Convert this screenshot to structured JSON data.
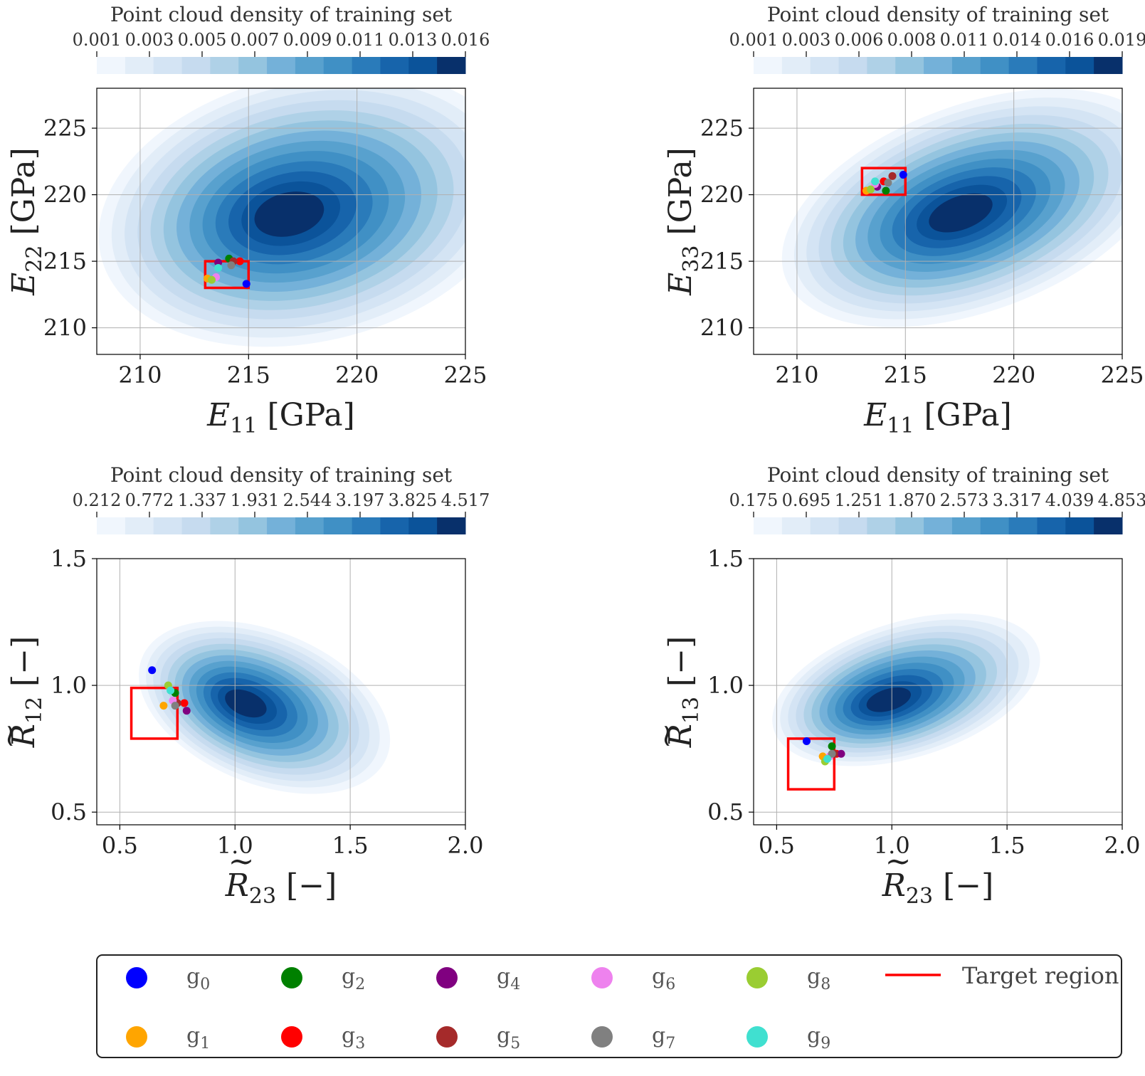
{
  "colors": {
    "blues": [
      "#f0f6fd",
      "#e2edf8",
      "#d4e4f4",
      "#c6dbef",
      "#afd1e7",
      "#94c4df",
      "#74b1d9",
      "#58a1ce",
      "#4090c5",
      "#2a7bba",
      "#1764ab",
      "#0b539a",
      "#08306b"
    ],
    "target": "#ff0000",
    "grid": "#b0b0b0"
  },
  "legend": {
    "items": [
      {
        "label": "g",
        "sub": "0",
        "color": "#0000ff"
      },
      {
        "label": "g",
        "sub": "1",
        "color": "#ffa500"
      },
      {
        "label": "g",
        "sub": "2",
        "color": "#008000"
      },
      {
        "label": "g",
        "sub": "3",
        "color": "#ff0000"
      },
      {
        "label": "g",
        "sub": "4",
        "color": "#800080"
      },
      {
        "label": "g",
        "sub": "5",
        "color": "#a52a2a"
      },
      {
        "label": "g",
        "sub": "6",
        "color": "#ee82ee"
      },
      {
        "label": "g",
        "sub": "7",
        "color": "#808080"
      },
      {
        "label": "g",
        "sub": "8",
        "color": "#9acd32"
      },
      {
        "label": "g",
        "sub": "9",
        "color": "#40e0d0"
      }
    ],
    "target_label": "Target region"
  },
  "chart_data": [
    {
      "type": "kde-contour-scatter",
      "colorbar_title": "Point cloud density of training set",
      "colorbar_ticks": [
        "0.001",
        "0.003",
        "0.005",
        "0.007",
        "0.009",
        "0.011",
        "0.013",
        "0.016"
      ],
      "xlabel": {
        "sym": "E",
        "sub": "11",
        "unit": " [GPa]",
        "tilde": false
      },
      "ylabel": {
        "sym": "E",
        "sub": "22",
        "unit": " [GPa]",
        "tilde": false
      },
      "xlim": [
        208,
        225
      ],
      "ylim": [
        208,
        228
      ],
      "xticks": [
        210,
        215,
        220,
        225
      ],
      "yticks": [
        210,
        215,
        220,
        225
      ],
      "tick_fmt": 0,
      "density": {
        "cx": 216.8,
        "cy": 218.5,
        "sx": 3.6,
        "sy": 3.8,
        "rho": 0.35,
        "skx": 0.8,
        "sky": 0.1
      },
      "target": {
        "x0": 213,
        "x1": 215,
        "y0": 213,
        "y1": 215
      },
      "points": [
        {
          "g": 0,
          "x": 214.9,
          "y": 213.3
        },
        {
          "g": 1,
          "x": 213.1,
          "y": 213.7
        },
        {
          "g": 2,
          "x": 214.1,
          "y": 215.2
        },
        {
          "g": 3,
          "x": 214.6,
          "y": 215.0
        },
        {
          "g": 4,
          "x": 213.6,
          "y": 214.9
        },
        {
          "g": 5,
          "x": 214.3,
          "y": 215.0
        },
        {
          "g": 6,
          "x": 213.5,
          "y": 213.8
        },
        {
          "g": 7,
          "x": 214.2,
          "y": 214.7
        },
        {
          "g": 8,
          "x": 213.3,
          "y": 213.6
        },
        {
          "g": 9,
          "x": 213.6,
          "y": 214.5
        }
      ]
    },
    {
      "type": "kde-contour-scatter",
      "colorbar_title": "Point cloud density of training set",
      "colorbar_ticks": [
        "0.001",
        "0.003",
        "0.006",
        "0.008",
        "0.011",
        "0.014",
        "0.016",
        "0.019"
      ],
      "xlabel": {
        "sym": "E",
        "sub": "11",
        "unit": " [GPa]",
        "tilde": false
      },
      "ylabel": {
        "sym": "E",
        "sub": "33",
        "unit": " [GPa]",
        "tilde": false
      },
      "xlim": [
        208,
        225
      ],
      "ylim": [
        208,
        228
      ],
      "xticks": [
        210,
        215,
        220,
        225
      ],
      "yticks": [
        210,
        215,
        220,
        225
      ],
      "tick_fmt": 0,
      "density": {
        "cx": 217.5,
        "cy": 218.6,
        "sx": 3.4,
        "sy": 3.4,
        "rho": 0.6,
        "skx": 0.6,
        "sky": 0.0
      },
      "target": {
        "x0": 213,
        "x1": 215,
        "y0": 220,
        "y1": 222
      },
      "points": [
        {
          "g": 0,
          "x": 214.9,
          "y": 221.5
        },
        {
          "g": 1,
          "x": 213.2,
          "y": 220.3
        },
        {
          "g": 2,
          "x": 214.1,
          "y": 220.3
        },
        {
          "g": 3,
          "x": 214.0,
          "y": 221.0
        },
        {
          "g": 4,
          "x": 213.7,
          "y": 220.6
        },
        {
          "g": 5,
          "x": 214.4,
          "y": 221.4
        },
        {
          "g": 6,
          "x": 213.6,
          "y": 220.8
        },
        {
          "g": 7,
          "x": 214.2,
          "y": 220.9
        },
        {
          "g": 8,
          "x": 213.4,
          "y": 220.4
        },
        {
          "g": 9,
          "x": 213.6,
          "y": 221.0
        }
      ]
    },
    {
      "type": "kde-contour-scatter",
      "colorbar_title": "Point cloud density of training set",
      "colorbar_ticks": [
        "0.212",
        "0.772",
        "1.337",
        "1.931",
        "2.544",
        "3.197",
        "3.825",
        "4.517"
      ],
      "xlabel": {
        "sym": "R",
        "sub": "23",
        "unit": " [−]",
        "tilde": true
      },
      "ylabel": {
        "sym": "R",
        "sub": "12",
        "unit": " [−]",
        "tilde": true
      },
      "xlim": [
        0.4,
        2.0
      ],
      "ylim": [
        0.45,
        1.5
      ],
      "xticks": [
        0.5,
        1.0,
        1.5,
        2.0
      ],
      "yticks": [
        0.5,
        1.0,
        1.5
      ],
      "tick_fmt": 1,
      "density": {
        "cx": 1.04,
        "cy": 0.93,
        "sx": 0.21,
        "sy": 0.13,
        "rho": -0.6,
        "skx": 1.2,
        "sky": 0.4
      },
      "target": {
        "x0": 0.55,
        "x1": 0.75,
        "y0": 0.79,
        "y1": 0.99
      },
      "points": [
        {
          "g": 0,
          "x": 0.64,
          "y": 1.06
        },
        {
          "g": 1,
          "x": 0.69,
          "y": 0.92
        },
        {
          "g": 2,
          "x": 0.74,
          "y": 0.97
        },
        {
          "g": 3,
          "x": 0.78,
          "y": 0.93
        },
        {
          "g": 4,
          "x": 0.79,
          "y": 0.9
        },
        {
          "g": 5,
          "x": 0.75,
          "y": 0.93
        },
        {
          "g": 6,
          "x": 0.73,
          "y": 0.94
        },
        {
          "g": 7,
          "x": 0.74,
          "y": 0.92
        },
        {
          "g": 8,
          "x": 0.71,
          "y": 1.0
        },
        {
          "g": 9,
          "x": 0.72,
          "y": 0.98
        }
      ]
    },
    {
      "type": "kde-contour-scatter",
      "colorbar_title": "Point cloud density of training set",
      "colorbar_ticks": [
        "0.175",
        "0.695",
        "1.251",
        "1.870",
        "2.573",
        "3.317",
        "4.039",
        "4.853"
      ],
      "xlabel": {
        "sym": "R",
        "sub": "23",
        "unit": " [−]",
        "tilde": true
      },
      "ylabel": {
        "sym": "R",
        "sub": "13",
        "unit": " [−]",
        "tilde": true
      },
      "xlim": [
        0.4,
        2.0
      ],
      "ylim": [
        0.45,
        1.5
      ],
      "xticks": [
        0.5,
        1.0,
        1.5,
        2.0
      ],
      "yticks": [
        0.5,
        1.0,
        1.5
      ],
      "tick_fmt": 1,
      "density": {
        "cx": 0.98,
        "cy": 0.94,
        "sx": 0.22,
        "sy": 0.11,
        "rho": 0.55,
        "skx": 1.2,
        "sky": 0.6
      },
      "target": {
        "x0": 0.55,
        "x1": 0.75,
        "y0": 0.59,
        "y1": 0.79
      },
      "points": [
        {
          "g": 0,
          "x": 0.63,
          "y": 0.78
        },
        {
          "g": 1,
          "x": 0.7,
          "y": 0.72
        },
        {
          "g": 2,
          "x": 0.74,
          "y": 0.76
        },
        {
          "g": 3,
          "x": 0.76,
          "y": 0.73
        },
        {
          "g": 4,
          "x": 0.78,
          "y": 0.73
        },
        {
          "g": 5,
          "x": 0.75,
          "y": 0.73
        },
        {
          "g": 6,
          "x": 0.73,
          "y": 0.72
        },
        {
          "g": 7,
          "x": 0.74,
          "y": 0.73
        },
        {
          "g": 8,
          "x": 0.71,
          "y": 0.7
        },
        {
          "g": 9,
          "x": 0.72,
          "y": 0.71
        }
      ]
    }
  ]
}
